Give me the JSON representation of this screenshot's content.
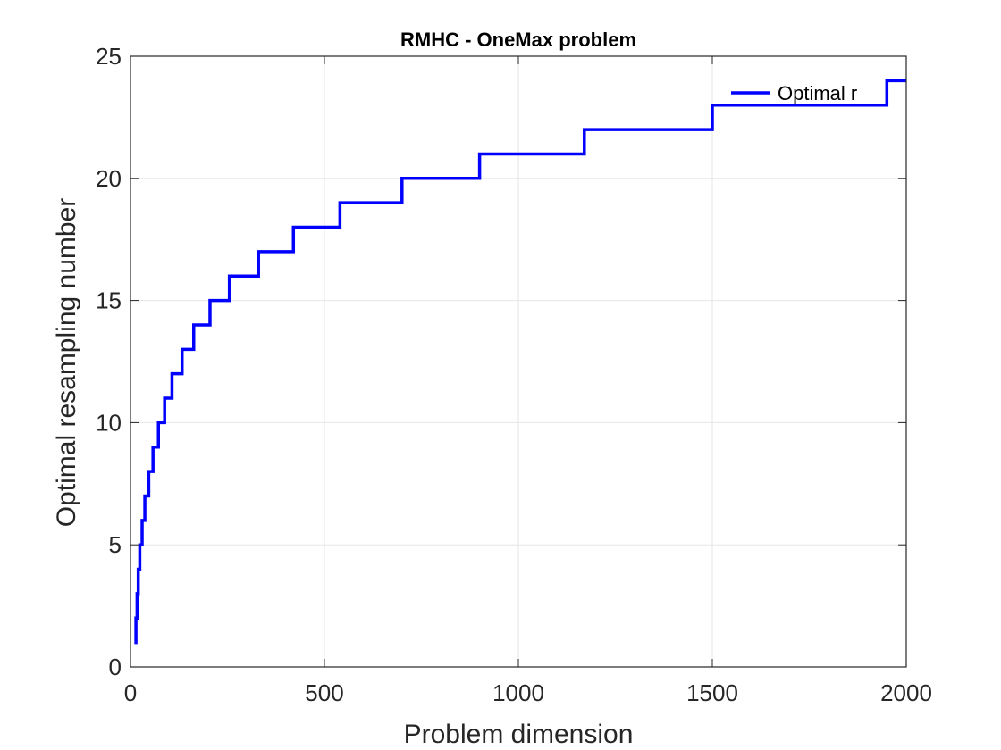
{
  "chart_data": {
    "type": "line",
    "title": "RMHC - OneMax problem",
    "xlabel": "Problem dimension",
    "ylabel": "Optimal resampling number",
    "xlim": [
      0,
      2000
    ],
    "ylim": [
      0,
      25
    ],
    "xticks": [
      0,
      500,
      1000,
      1500,
      2000
    ],
    "yticks": [
      0,
      5,
      10,
      15,
      20,
      25
    ],
    "grid": true,
    "legend_position": "top-right",
    "colors": {
      "series": "#0000ff",
      "grid": "#e6e6e6",
      "axis": "#262626"
    },
    "series": [
      {
        "name": "Optimal r",
        "step": "post",
        "x": [
          10,
          14,
          17,
          20,
          24,
          30,
          37,
          47,
          58,
          72,
          88,
          107,
          133,
          163,
          205,
          255,
          330,
          420,
          540,
          700,
          900,
          1170,
          1500,
          1950,
          2000
        ],
        "y": [
          1,
          2,
          3,
          4,
          5,
          6,
          7,
          8,
          9,
          10,
          11,
          12,
          13,
          14,
          15,
          16,
          17,
          18,
          19,
          20,
          21,
          22,
          23,
          24,
          24
        ]
      }
    ]
  }
}
